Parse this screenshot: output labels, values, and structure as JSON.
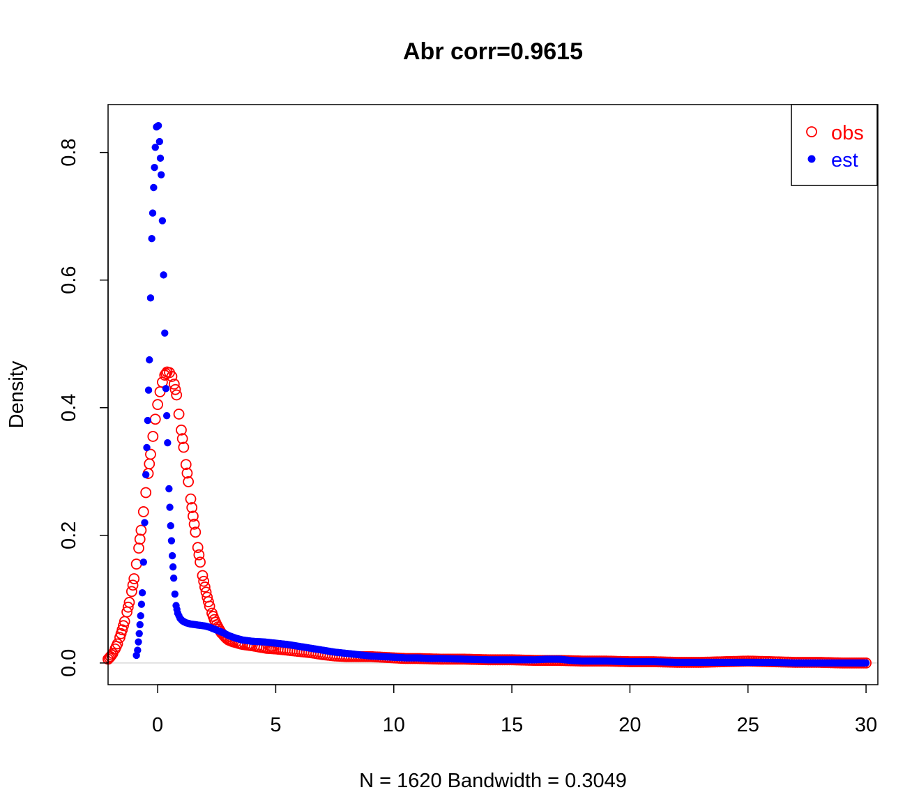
{
  "chart_data": {
    "type": "scatter",
    "title": "Abr corr=0.9615",
    "xlabel": "N = 1620   Bandwidth = 0.3049",
    "ylabel": "Density",
    "xlim": [
      -2.1,
      30.5
    ],
    "ylim": [
      -0.034,
      0.875
    ],
    "xticks": [
      0,
      5,
      10,
      15,
      20,
      25,
      30
    ],
    "xtick_labels": [
      "0",
      "5",
      "10",
      "15",
      "20",
      "25",
      "30"
    ],
    "yticks": [
      0.0,
      0.2,
      0.4,
      0.6,
      0.8
    ],
    "ytick_labels": [
      "0.0",
      "0.2",
      "0.4",
      "0.6",
      "0.8"
    ],
    "grid": false,
    "baseline": 0,
    "legend": {
      "position": "top-right",
      "entries": [
        {
          "label": "obs",
          "color": "#ff0000",
          "marker": "open-circle"
        },
        {
          "label": "est",
          "color": "#0000ff",
          "marker": "filled-circle"
        }
      ]
    },
    "series": [
      {
        "name": "obs",
        "color": "#ff0000",
        "marker": "open-circle",
        "points": [
          [
            -2.1,
            0.006
          ],
          [
            -2.0,
            0.01
          ],
          [
            -1.9,
            0.015
          ],
          [
            -1.8,
            0.022
          ],
          [
            -1.7,
            0.03
          ],
          [
            -1.6,
            0.04
          ],
          [
            -1.5,
            0.052
          ],
          [
            -1.4,
            0.065
          ],
          [
            -1.3,
            0.08
          ],
          [
            -1.2,
            0.095
          ],
          [
            -1.1,
            0.112
          ],
          [
            -1.0,
            0.132
          ],
          [
            -0.9,
            0.155
          ],
          [
            -0.8,
            0.18
          ],
          [
            -0.7,
            0.208
          ],
          [
            -0.6,
            0.237
          ],
          [
            -0.5,
            0.267
          ],
          [
            -0.4,
            0.297
          ],
          [
            -0.3,
            0.327
          ],
          [
            -0.2,
            0.355
          ],
          [
            -0.1,
            0.382
          ],
          [
            0.0,
            0.405
          ],
          [
            0.1,
            0.425
          ],
          [
            0.2,
            0.44
          ],
          [
            0.3,
            0.451
          ],
          [
            0.4,
            0.456
          ],
          [
            0.5,
            0.455
          ],
          [
            0.6,
            0.449
          ],
          [
            0.7,
            0.437
          ],
          [
            0.8,
            0.42
          ],
          [
            0.9,
            0.39
          ],
          [
            1.0,
            0.365
          ],
          [
            1.1,
            0.338
          ],
          [
            1.2,
            0.311
          ],
          [
            1.3,
            0.284
          ],
          [
            1.4,
            0.257
          ],
          [
            1.5,
            0.23
          ],
          [
            1.6,
            0.205
          ],
          [
            1.7,
            0.181
          ],
          [
            1.8,
            0.158
          ],
          [
            1.9,
            0.137
          ],
          [
            2.0,
            0.119
          ],
          [
            2.1,
            0.103
          ],
          [
            2.2,
            0.089
          ],
          [
            2.3,
            0.078
          ],
          [
            2.4,
            0.068
          ],
          [
            2.5,
            0.06
          ],
          [
            2.6,
            0.053
          ],
          [
            2.7,
            0.047
          ],
          [
            2.8,
            0.043
          ],
          [
            2.9,
            0.039
          ],
          [
            3.0,
            0.036
          ],
          [
            3.2,
            0.033
          ],
          [
            3.4,
            0.031
          ],
          [
            3.6,
            0.029
          ],
          [
            3.8,
            0.028
          ],
          [
            4.0,
            0.027
          ],
          [
            4.3,
            0.025
          ],
          [
            4.6,
            0.023
          ],
          [
            5.0,
            0.022
          ],
          [
            5.5,
            0.02
          ],
          [
            6.0,
            0.018
          ],
          [
            6.5,
            0.016
          ],
          [
            7.0,
            0.013
          ],
          [
            7.5,
            0.011
          ],
          [
            8.0,
            0.01
          ],
          [
            8.5,
            0.01
          ],
          [
            9.0,
            0.01
          ],
          [
            9.5,
            0.009
          ],
          [
            10.0,
            0.008
          ],
          [
            10.5,
            0.007
          ],
          [
            11.0,
            0.007
          ],
          [
            12.0,
            0.006
          ],
          [
            13.0,
            0.006
          ],
          [
            14.0,
            0.005
          ],
          [
            15.0,
            0.005
          ],
          [
            16.0,
            0.004
          ],
          [
            17.0,
            0.004
          ],
          [
            18.0,
            0.003
          ],
          [
            19.0,
            0.003
          ],
          [
            20.0,
            0.002
          ],
          [
            21.0,
            0.002
          ],
          [
            22.0,
            0.001
          ],
          [
            23.0,
            0.001
          ],
          [
            24.0,
            0.002
          ],
          [
            25.0,
            0.003
          ],
          [
            26.0,
            0.002
          ],
          [
            27.0,
            0.001
          ],
          [
            28.0,
            0.001
          ],
          [
            29.0,
            0.0
          ],
          [
            30.0,
            0.0
          ]
        ]
      },
      {
        "name": "est",
        "color": "#0000ff",
        "marker": "filled-circle",
        "points": [
          [
            -0.9,
            0.012
          ],
          [
            -0.85,
            0.02
          ],
          [
            -0.78,
            0.046
          ],
          [
            -0.72,
            0.074
          ],
          [
            -0.65,
            0.11
          ],
          [
            -0.6,
            0.158
          ],
          [
            -0.55,
            0.22
          ],
          [
            -0.5,
            0.295
          ],
          [
            -0.42,
            0.38
          ],
          [
            -0.35,
            0.475
          ],
          [
            -0.3,
            0.572
          ],
          [
            -0.25,
            0.665
          ],
          [
            -0.17,
            0.745
          ],
          [
            -0.1,
            0.808
          ],
          [
            -0.05,
            0.84
          ],
          [
            0.03,
            0.842
          ],
          [
            0.08,
            0.817
          ],
          [
            0.15,
            0.765
          ],
          [
            0.2,
            0.693
          ],
          [
            0.25,
            0.608
          ],
          [
            0.3,
            0.517
          ],
          [
            0.35,
            0.43
          ],
          [
            0.42,
            0.345
          ],
          [
            0.48,
            0.273
          ],
          [
            0.55,
            0.215
          ],
          [
            0.62,
            0.168
          ],
          [
            0.68,
            0.133
          ],
          [
            0.73,
            0.108
          ],
          [
            0.78,
            0.09
          ],
          [
            0.85,
            0.078
          ],
          [
            0.95,
            0.07
          ],
          [
            1.05,
            0.066
          ],
          [
            1.2,
            0.063
          ],
          [
            1.4,
            0.061
          ],
          [
            1.6,
            0.06
          ],
          [
            1.8,
            0.059
          ],
          [
            2.0,
            0.058
          ],
          [
            2.2,
            0.056
          ],
          [
            2.4,
            0.053
          ],
          [
            2.6,
            0.05
          ],
          [
            2.8,
            0.047
          ],
          [
            3.0,
            0.043
          ],
          [
            3.3,
            0.039
          ],
          [
            3.6,
            0.036
          ],
          [
            4.0,
            0.034
          ],
          [
            4.5,
            0.033
          ],
          [
            5.0,
            0.031
          ],
          [
            5.5,
            0.029
          ],
          [
            6.0,
            0.026
          ],
          [
            6.5,
            0.023
          ],
          [
            7.0,
            0.02
          ],
          [
            7.5,
            0.017
          ],
          [
            8.0,
            0.015
          ],
          [
            8.5,
            0.013
          ],
          [
            9.0,
            0.011
          ],
          [
            9.5,
            0.01
          ],
          [
            10.0,
            0.009
          ],
          [
            10.5,
            0.008
          ],
          [
            11.0,
            0.008
          ],
          [
            11.5,
            0.007
          ],
          [
            12.0,
            0.007
          ],
          [
            13.0,
            0.006
          ],
          [
            14.0,
            0.005
          ],
          [
            15.0,
            0.005
          ],
          [
            16.0,
            0.005
          ],
          [
            16.5,
            0.006
          ],
          [
            17.0,
            0.006
          ],
          [
            17.5,
            0.004
          ],
          [
            18.0,
            0.003
          ],
          [
            19.0,
            0.003
          ],
          [
            20.0,
            0.002
          ],
          [
            21.0,
            0.002
          ],
          [
            22.0,
            0.001
          ],
          [
            23.0,
            0.001
          ],
          [
            24.0,
            0.001
          ],
          [
            25.0,
            0.001
          ],
          [
            26.0,
            0.001
          ],
          [
            27.0,
            0.0
          ],
          [
            28.0,
            0.0
          ],
          [
            29.0,
            0.0
          ],
          [
            30.0,
            0.0
          ]
        ]
      }
    ]
  }
}
